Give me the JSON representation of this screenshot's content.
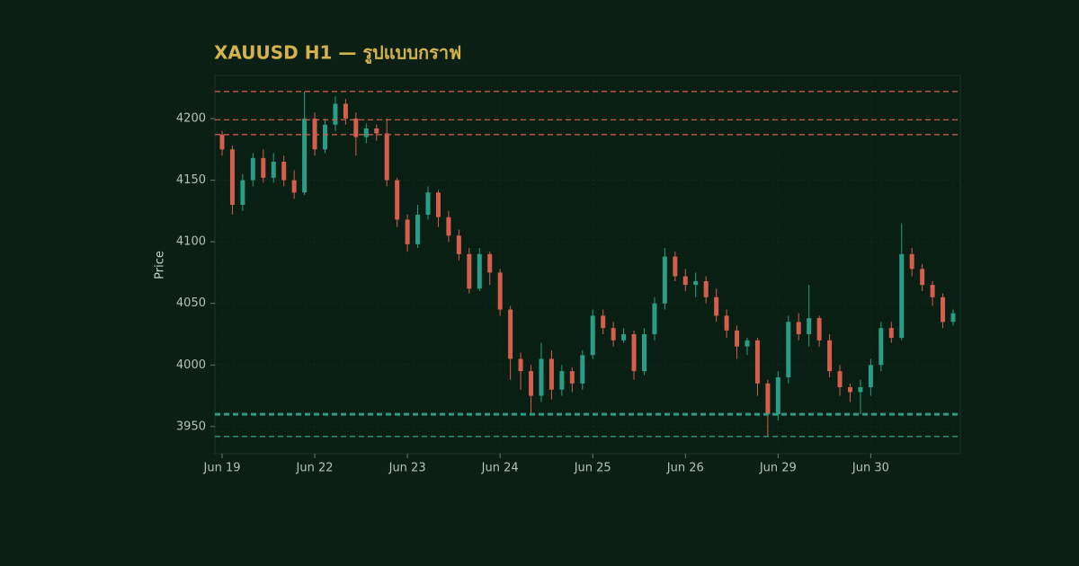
{
  "chart_data": {
    "type": "candlestick",
    "title": "XAUUSD H1 — รูปแบบกราฟ",
    "y_label": "Price",
    "categories": [
      "Jun 19",
      null,
      null,
      null,
      null,
      null,
      null,
      null,
      null,
      "Jun 22",
      null,
      null,
      null,
      null,
      null,
      null,
      null,
      null,
      "Jun 23",
      null,
      null,
      null,
      null,
      null,
      null,
      null,
      null,
      "Jun 24",
      null,
      null,
      null,
      null,
      null,
      null,
      null,
      null,
      "Jun 25",
      null,
      null,
      null,
      null,
      null,
      null,
      null,
      null,
      "Jun 26",
      null,
      null,
      null,
      null,
      null,
      null,
      null,
      null,
      "Jun 29",
      null,
      null,
      null,
      null,
      null,
      null,
      null,
      null,
      "Jun 30",
      null,
      null,
      null,
      null,
      null,
      null,
      null,
      null
    ],
    "open": [
      4187,
      4175,
      4130,
      4150,
      4168,
      4152,
      4165,
      4150,
      4140,
      4200,
      4175,
      4195,
      4212,
      4200,
      4185,
      4192,
      4188,
      4150,
      4118,
      4098,
      4122,
      4140,
      4120,
      4105,
      4090,
      4062,
      4090,
      4075,
      4045,
      4005,
      3995,
      3975,
      4005,
      3980,
      3995,
      3985,
      4008,
      4040,
      4030,
      4020,
      4025,
      3995,
      4025,
      4050,
      4088,
      4072,
      4065,
      4068,
      4055,
      4040,
      4028,
      4015,
      4020,
      3985,
      3960,
      3990,
      4035,
      4025,
      4038,
      4020,
      3995,
      3982,
      3978,
      3982,
      4000,
      4030,
      4022,
      4090,
      4078,
      4065,
      4055,
      4035
    ],
    "high": [
      4190,
      4178,
      4155,
      4172,
      4175,
      4172,
      4170,
      4158,
      4222,
      4205,
      4200,
      4218,
      4216,
      4205,
      4196,
      4195,
      4200,
      4152,
      4122,
      4130,
      4145,
      4142,
      4125,
      4110,
      4095,
      4095,
      4092,
      4078,
      4048,
      4010,
      4000,
      4018,
      4012,
      4000,
      3998,
      4012,
      4045,
      4045,
      4035,
      4030,
      4028,
      4030,
      4055,
      4095,
      4092,
      4078,
      4075,
      4072,
      4062,
      4045,
      4032,
      4022,
      4022,
      3988,
      3995,
      4040,
      4042,
      4065,
      4040,
      4025,
      4000,
      3985,
      3988,
      4005,
      4035,
      4035,
      4115,
      4095,
      4082,
      4068,
      4058,
      4045
    ],
    "low": [
      4170,
      4122,
      4125,
      4145,
      4148,
      4148,
      4145,
      4135,
      4138,
      4170,
      4172,
      4190,
      4195,
      4170,
      4180,
      4182,
      4145,
      4112,
      4092,
      4095,
      4118,
      4112,
      4100,
      4085,
      4058,
      4060,
      4065,
      4040,
      3988,
      3980,
      3960,
      3970,
      3972,
      3975,
      3978,
      3980,
      4005,
      4025,
      4015,
      4018,
      3988,
      3992,
      4020,
      4045,
      4068,
      4060,
      4055,
      4050,
      4035,
      4022,
      4005,
      4008,
      3975,
      3942,
      3955,
      3985,
      4020,
      4015,
      4015,
      3990,
      3975,
      3970,
      3960,
      3975,
      3995,
      4018,
      4020,
      4072,
      4060,
      4048,
      4030,
      4032
    ],
    "close": [
      4175,
      4130,
      4150,
      4168,
      4152,
      4165,
      4150,
      4140,
      4200,
      4175,
      4195,
      4212,
      4200,
      4185,
      4192,
      4188,
      4150,
      4118,
      4098,
      4122,
      4140,
      4120,
      4105,
      4090,
      4062,
      4090,
      4075,
      4045,
      4005,
      3995,
      3975,
      4005,
      3980,
      3995,
      3985,
      4008,
      4040,
      4030,
      4020,
      4025,
      3995,
      4025,
      4050,
      4088,
      4072,
      4065,
      4068,
      4055,
      4040,
      4028,
      4015,
      4020,
      3985,
      3960,
      3990,
      4035,
      4025,
      4038,
      4020,
      3995,
      3982,
      3978,
      3982,
      4000,
      4030,
      4022,
      4090,
      4078,
      4065,
      4055,
      4035,
      4042
    ],
    "up_color": "#2a9d86",
    "down_color": "#d55e4c",
    "levels": [
      {
        "value": 4222,
        "color": "#c75a4a",
        "width": 1.3
      },
      {
        "value": 4199,
        "color": "#c75a4a",
        "width": 1.3
      },
      {
        "value": 4187,
        "color": "#c75a4a",
        "width": 1.3
      },
      {
        "value": 3960,
        "color": "#2a9d86",
        "width": 3
      },
      {
        "value": 3942,
        "color": "#2a9d86",
        "width": 1.3
      }
    ],
    "ylim": [
      3928,
      4235
    ],
    "yticks": [
      3950,
      4000,
      4050,
      4100,
      4150,
      4200
    ],
    "grid": true
  }
}
